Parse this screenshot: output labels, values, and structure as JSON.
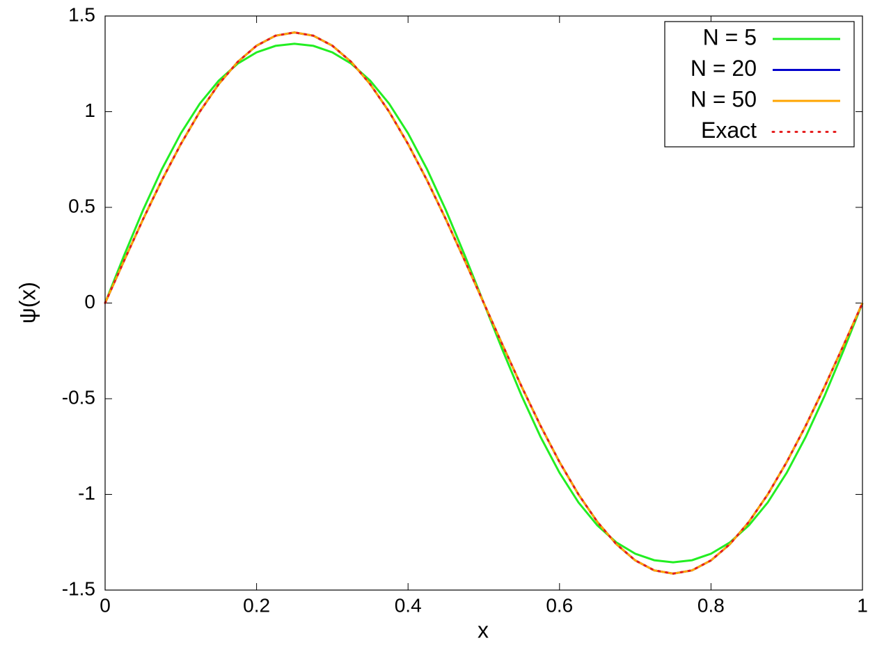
{
  "chart_data": {
    "type": "line",
    "xlabel": "x",
    "ylabel": "ψ(x)",
    "x": [
      0,
      0.025,
      0.05,
      0.075,
      0.1,
      0.125,
      0.15,
      0.175,
      0.2,
      0.225,
      0.25,
      0.275,
      0.3,
      0.325,
      0.35,
      0.375,
      0.4,
      0.425,
      0.45,
      0.475,
      0.5,
      0.525,
      0.55,
      0.575,
      0.6,
      0.625,
      0.65,
      0.675,
      0.7,
      0.725,
      0.75,
      0.775,
      0.8,
      0.825,
      0.85,
      0.875,
      0.9,
      0.925,
      0.95,
      0.975,
      1
    ],
    "series": [
      {
        "name": "N = 5",
        "color": "#22ee22",
        "line": "solid",
        "values": [
          0,
          0.248,
          0.485,
          0.7,
          0.887,
          1.042,
          1.162,
          1.251,
          1.31,
          1.344,
          1.355,
          1.344,
          1.31,
          1.251,
          1.162,
          1.042,
          0.887,
          0.7,
          0.485,
          0.248,
          0,
          -0.248,
          -0.485,
          -0.7,
          -0.887,
          -1.042,
          -1.162,
          -1.251,
          -1.31,
          -1.344,
          -1.355,
          -1.344,
          -1.31,
          -1.251,
          -1.162,
          -1.042,
          -0.887,
          -0.7,
          -0.485,
          -0.248,
          0
        ]
      },
      {
        "name": "N = 20",
        "color": "#0000cc",
        "line": "solid",
        "values": [
          0,
          0.221,
          0.437,
          0.642,
          0.831,
          1.0,
          1.144,
          1.26,
          1.345,
          1.397,
          1.414,
          1.397,
          1.345,
          1.26,
          1.144,
          1.0,
          0.831,
          0.642,
          0.437,
          0.221,
          0,
          -0.221,
          -0.437,
          -0.642,
          -0.831,
          -1.0,
          -1.144,
          -1.26,
          -1.345,
          -1.397,
          -1.414,
          -1.397,
          -1.345,
          -1.26,
          -1.144,
          -1.0,
          -0.831,
          -0.642,
          -0.437,
          -0.221,
          0
        ]
      },
      {
        "name": "N = 50",
        "color": "#ffa500",
        "line": "solid",
        "values": [
          0,
          0.221,
          0.437,
          0.642,
          0.831,
          1.0,
          1.144,
          1.26,
          1.345,
          1.397,
          1.414,
          1.397,
          1.345,
          1.26,
          1.144,
          1.0,
          0.831,
          0.642,
          0.437,
          0.221,
          0,
          -0.221,
          -0.437,
          -0.642,
          -0.831,
          -1.0,
          -1.144,
          -1.26,
          -1.345,
          -1.397,
          -1.414,
          -1.397,
          -1.345,
          -1.26,
          -1.144,
          -1.0,
          -0.831,
          -0.642,
          -0.437,
          -0.221,
          0
        ]
      },
      {
        "name": "Exact",
        "color": "#e51e1e",
        "line": "dotted",
        "values": [
          0,
          0.221,
          0.437,
          0.642,
          0.831,
          1.0,
          1.144,
          1.26,
          1.345,
          1.397,
          1.414,
          1.397,
          1.345,
          1.26,
          1.144,
          1.0,
          0.831,
          0.642,
          0.437,
          0.221,
          0,
          -0.221,
          -0.437,
          -0.642,
          -0.831,
          -1.0,
          -1.144,
          -1.26,
          -1.345,
          -1.397,
          -1.414,
          -1.397,
          -1.345,
          -1.26,
          -1.144,
          -1.0,
          -0.831,
          -0.642,
          -0.437,
          -0.221,
          0
        ]
      }
    ],
    "xlim": [
      0,
      1
    ],
    "xticks": [
      0,
      0.2,
      0.4,
      0.6,
      0.8,
      1
    ],
    "ylim": [
      -1.5,
      1.5
    ],
    "yticks": [
      -1.5,
      -1,
      -0.5,
      0,
      0.5,
      1,
      1.5
    ],
    "grid": false,
    "legend": "upper right"
  }
}
